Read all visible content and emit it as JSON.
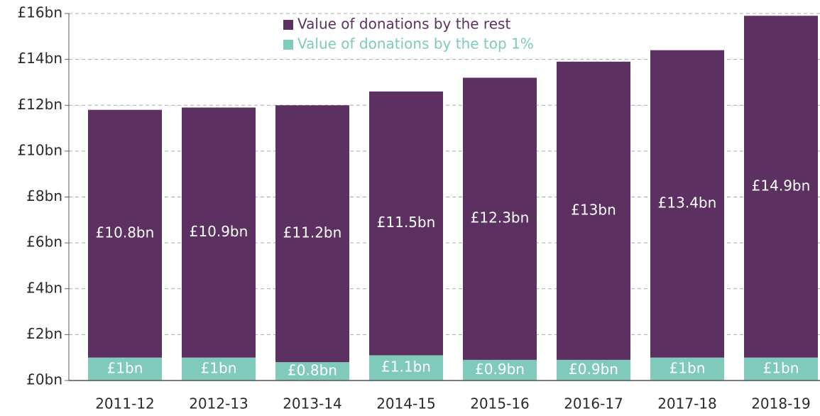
{
  "chart_data": {
    "type": "stacked_bar",
    "categories": [
      "2011-12",
      "2012-13",
      "2013-14",
      "2014-15",
      "2015-16",
      "2016-17",
      "2017-18",
      "2018-19"
    ],
    "series": [
      {
        "name": "Value of donations by the top 1%",
        "color": "#7fcabb",
        "values": [
          1,
          1,
          0.8,
          1.1,
          0.9,
          0.9,
          1,
          1
        ],
        "value_labels": [
          "£1bn",
          "£1bn",
          "£0.8bn",
          "£1.1bn",
          "£0.9bn",
          "£0.9bn",
          "£1bn",
          "£1bn"
        ]
      },
      {
        "name": "Value of donations by the rest",
        "color": "#5c3060",
        "values": [
          10.8,
          10.9,
          11.2,
          11.5,
          12.3,
          13,
          13.4,
          14.9
        ],
        "value_labels": [
          "£10.8bn",
          "£10.9bn",
          "£11.2bn",
          "£11.5bn",
          "£12.3bn",
          "£13bn",
          "£13.4bn",
          "£14.9bn"
        ]
      }
    ],
    "ylim": [
      0,
      16
    ],
    "yticks": [
      {
        "value": 0,
        "label": "£0bn"
      },
      {
        "value": 2,
        "label": "£2bn"
      },
      {
        "value": 4,
        "label": "£4bn"
      },
      {
        "value": 6,
        "label": "£6bn"
      },
      {
        "value": 8,
        "label": "£8bn"
      },
      {
        "value": 10,
        "label": "£10bn"
      },
      {
        "value": 12,
        "label": "£12bn"
      },
      {
        "value": 14,
        "label": "£14bn"
      },
      {
        "value": 16,
        "label": "£16bn"
      }
    ],
    "grid": true
  }
}
